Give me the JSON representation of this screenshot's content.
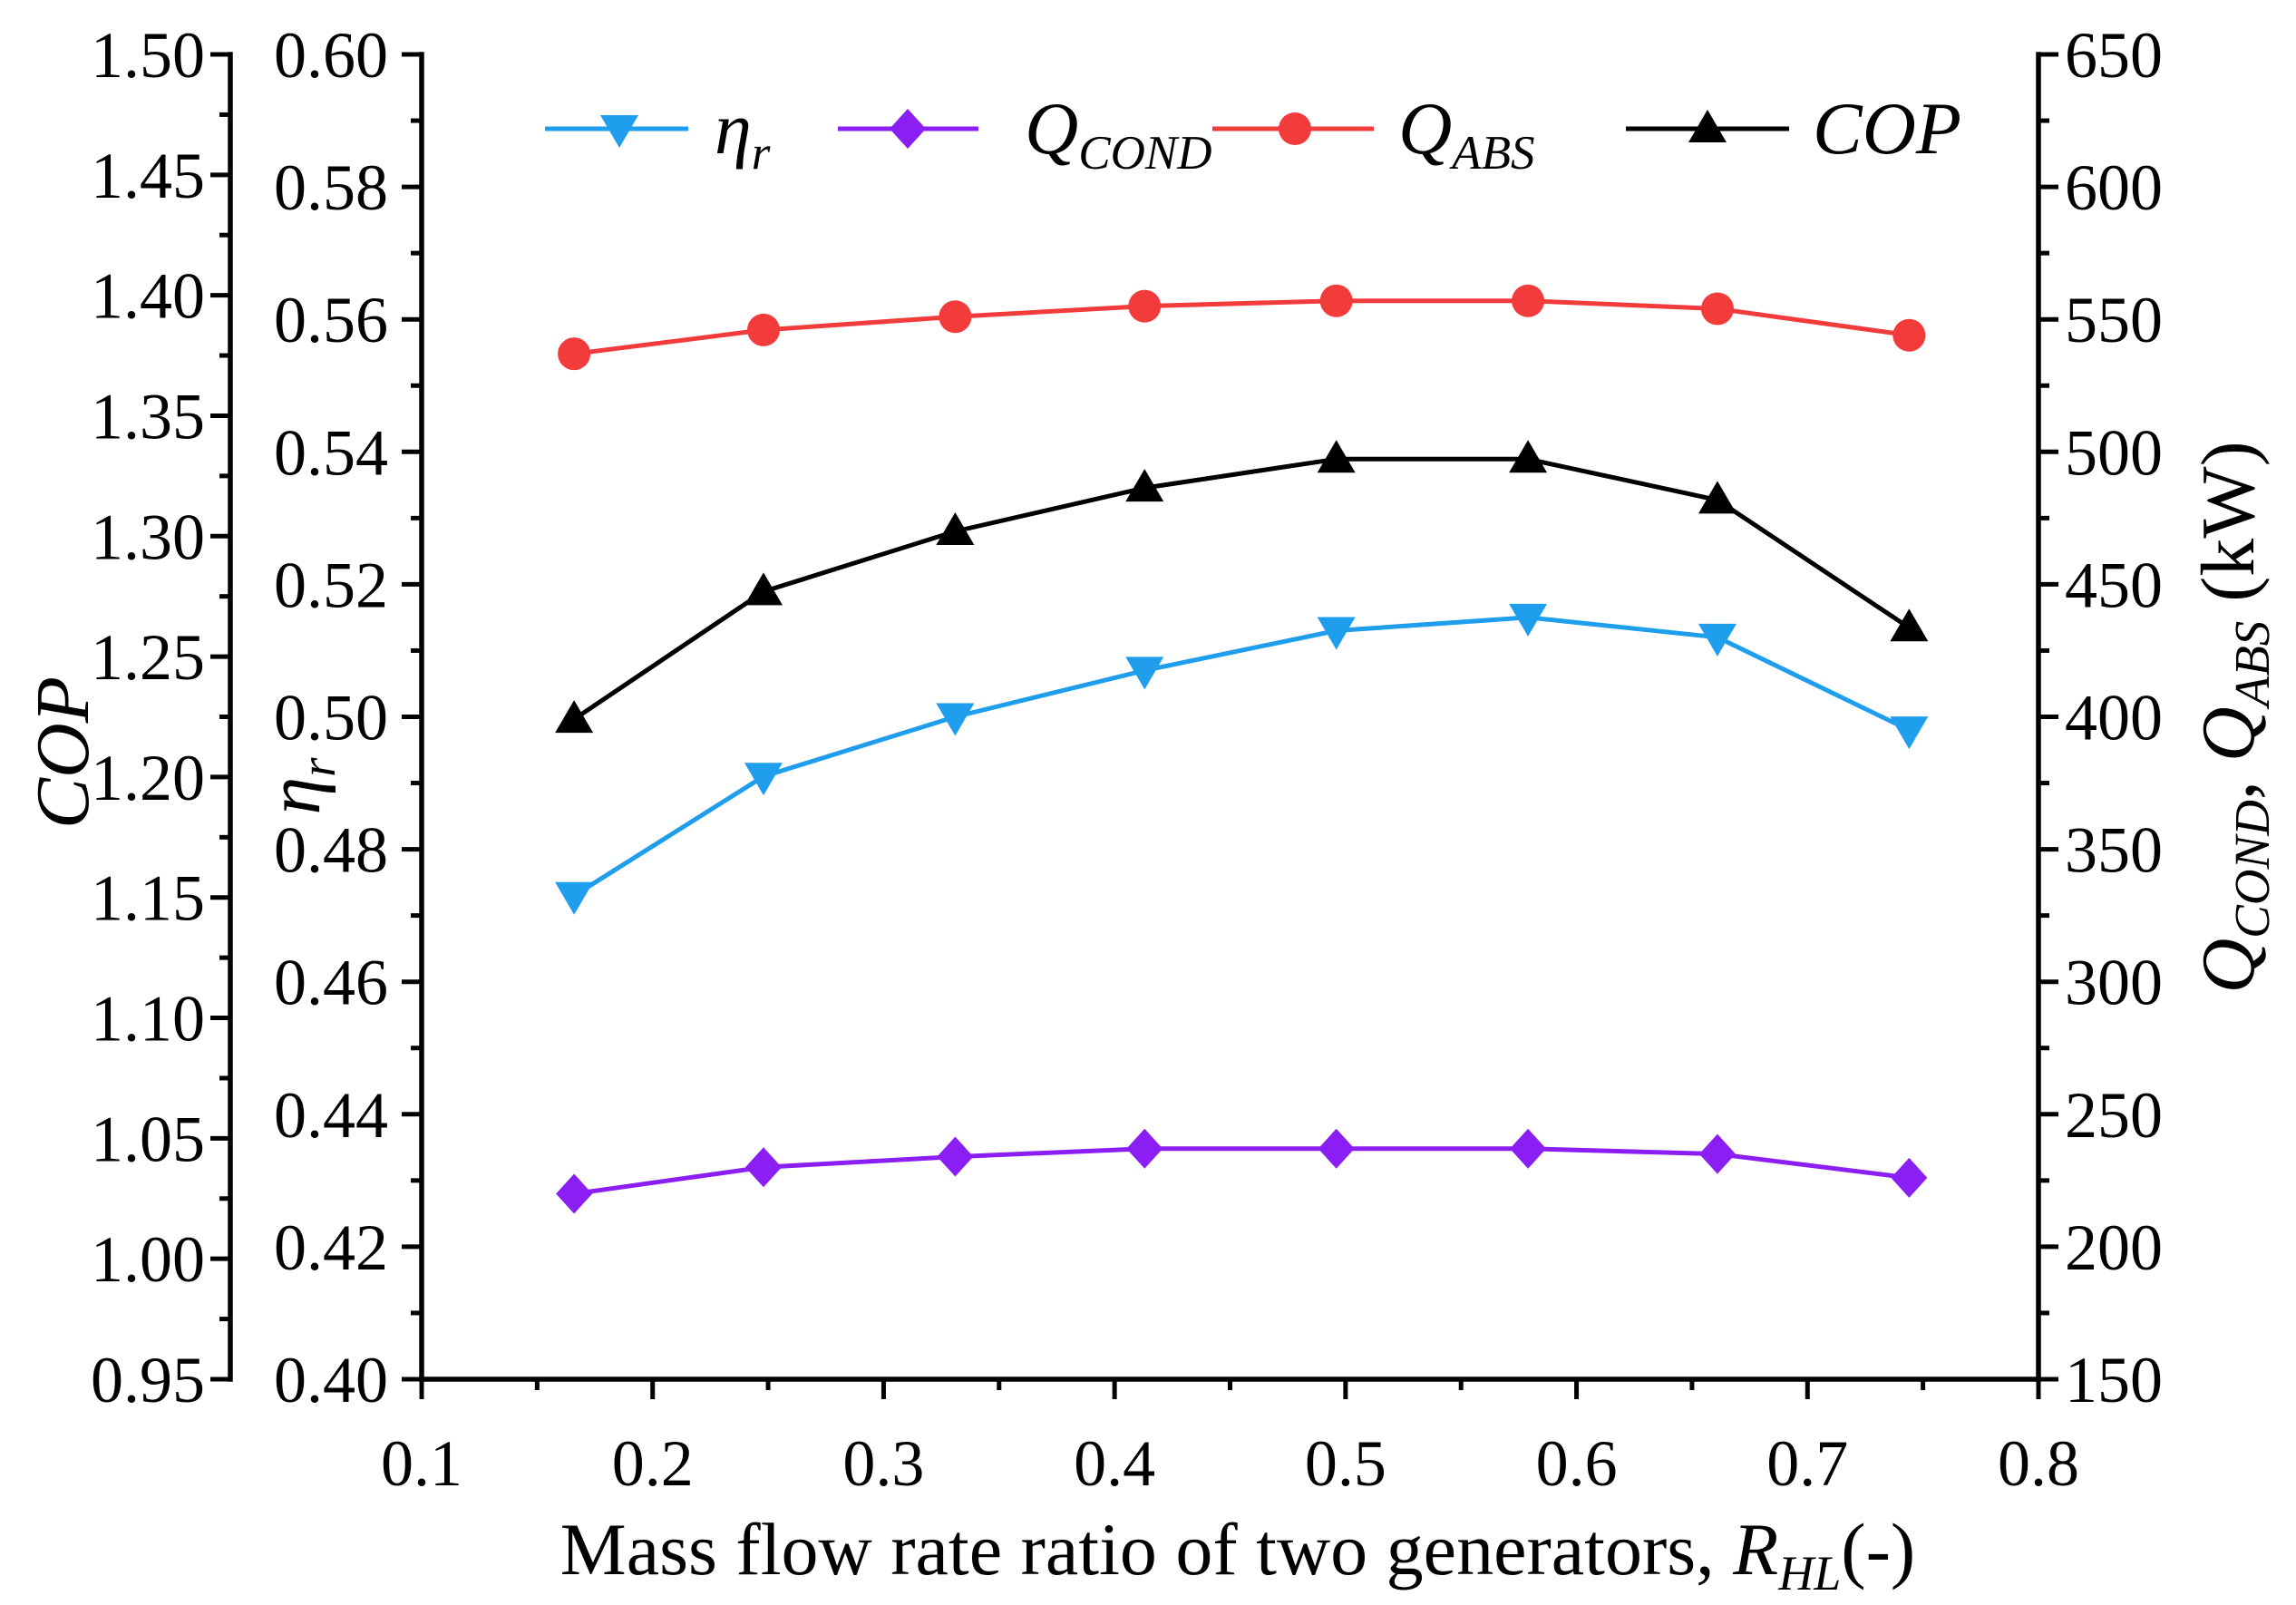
{
  "chart_data": {
    "type": "line",
    "xlabel": {
      "text": "Mass flow rate ratio of two generators, ",
      "symbol": "R",
      "sub": "HL",
      "suffix": "(-)"
    },
    "xlim": [
      0.1,
      0.8
    ],
    "x_ticks": [
      "0.1",
      "0.2",
      "0.3",
      "0.4",
      "0.5",
      "0.6",
      "0.7",
      "0.8"
    ],
    "x": [
      0.166,
      0.248,
      0.331,
      0.413,
      0.496,
      0.579,
      0.661,
      0.744
    ],
    "axes": [
      {
        "label": {
          "symbol": "COP"
        },
        "ylim": [
          0.95,
          1.5
        ],
        "ticks": [
          "0.95",
          "1.00",
          "1.05",
          "1.10",
          "1.15",
          "1.20",
          "1.25",
          "1.30",
          "1.35",
          "1.40",
          "1.45",
          "1.50"
        ]
      },
      {
        "label": {
          "symbol": "η",
          "sub": "r"
        },
        "ylim": [
          0.4,
          0.6
        ],
        "ticks": [
          "0.40",
          "0.42",
          "0.44",
          "0.46",
          "0.48",
          "0.50",
          "0.52",
          "0.54",
          "0.56",
          "0.58",
          "0.60"
        ]
      },
      {
        "label": {
          "symbol": "Q",
          "sub": "COND",
          "sep": ", ",
          "symbol2": "Q",
          "sub2": "ABS",
          "unit": " (kW)"
        },
        "ylim": [
          150,
          650
        ],
        "ticks": [
          "150",
          "200",
          "250",
          "300",
          "350",
          "400",
          "450",
          "500",
          "550",
          "600",
          "650"
        ]
      }
    ],
    "series": [
      {
        "name": {
          "symbol": "η",
          "sub": "r"
        },
        "axis": 1,
        "color": "#1E9EEC",
        "marker": "triangle-down",
        "values": [
          0.473,
          0.491,
          0.5,
          0.507,
          0.513,
          0.515,
          0.512,
          0.498
        ]
      },
      {
        "name": {
          "symbol": "Q",
          "sub": "COND"
        },
        "axis": 2,
        "color": "#8B1EF2",
        "marker": "diamond",
        "values": [
          220,
          230,
          234,
          237,
          237,
          237,
          235,
          226
        ]
      },
      {
        "name": {
          "symbol": "Q",
          "sub": "ABS"
        },
        "axis": 2,
        "color": "#F23B3B",
        "marker": "circle",
        "values": [
          537,
          546,
          551,
          555,
          557,
          557,
          554,
          544
        ]
      },
      {
        "name": {
          "symbol": "COP"
        },
        "axis": 0,
        "color": "#000000",
        "marker": "triangle-up",
        "values": [
          1.224,
          1.277,
          1.302,
          1.32,
          1.332,
          1.332,
          1.315,
          1.262
        ]
      }
    ],
    "legend_position": "top"
  }
}
